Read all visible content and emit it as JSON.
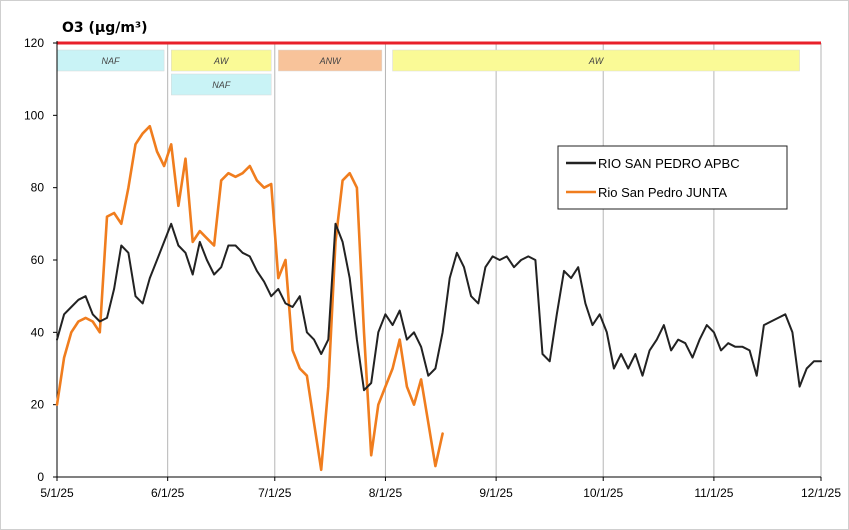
{
  "chart_data": {
    "type": "line",
    "title": "O3  (µg/m³)",
    "ylim": [
      0,
      120
    ],
    "y_ticks": [
      "0",
      "20",
      "40",
      "60",
      "80",
      "100",
      "120"
    ],
    "x_tick_labels": [
      "5/1/25",
      "6/1/25",
      "7/1/25",
      "8/1/25",
      "9/1/25",
      "10/1/25",
      "11/1/25",
      "12/1/25"
    ],
    "x_range": [
      "2025-05-01",
      "2025-12-01"
    ],
    "grid": "vertical",
    "legend_position": "right",
    "limit_line": {
      "value": 120,
      "color": "#e8202a"
    },
    "event_bands": [
      {
        "label": "NAF",
        "start": "2025-05-01",
        "end": "2025-05-31",
        "row": 0,
        "color": "#c9f3f6"
      },
      {
        "label": "AW",
        "start": "2025-06-02",
        "end": "2025-06-30",
        "row": 0,
        "color": "#fafa96"
      },
      {
        "label": "NAF",
        "start": "2025-06-02",
        "end": "2025-06-30",
        "row": 1,
        "color": "#c9f3f6"
      },
      {
        "label": "ANW",
        "start": "2025-07-02",
        "end": "2025-07-31",
        "row": 0,
        "color": "#f8c39a"
      },
      {
        "label": "AW",
        "start": "2025-08-03",
        "end": "2025-11-25",
        "row": 0,
        "color": "#fafa96"
      }
    ],
    "series": [
      {
        "name": "RIO SAN PEDRO APBC",
        "color": "#222222",
        "x": [
          "2025-05-01",
          "2025-05-03",
          "2025-05-05",
          "2025-05-07",
          "2025-05-09",
          "2025-05-11",
          "2025-05-13",
          "2025-05-15",
          "2025-05-17",
          "2025-05-19",
          "2025-05-21",
          "2025-05-23",
          "2025-05-25",
          "2025-05-27",
          "2025-05-29",
          "2025-05-31",
          "2025-06-02",
          "2025-06-04",
          "2025-06-06",
          "2025-06-08",
          "2025-06-10",
          "2025-06-12",
          "2025-06-14",
          "2025-06-16",
          "2025-06-18",
          "2025-06-20",
          "2025-06-22",
          "2025-06-24",
          "2025-06-26",
          "2025-06-28",
          "2025-06-30",
          "2025-07-02",
          "2025-07-04",
          "2025-07-06",
          "2025-07-08",
          "2025-07-10",
          "2025-07-12",
          "2025-07-14",
          "2025-07-16",
          "2025-07-18",
          "2025-07-20",
          "2025-07-22",
          "2025-07-24",
          "2025-07-26",
          "2025-07-28",
          "2025-07-30",
          "2025-08-01",
          "2025-08-03",
          "2025-08-05",
          "2025-08-07",
          "2025-08-09",
          "2025-08-11",
          "2025-08-13",
          "2025-08-15",
          "2025-08-17",
          "2025-08-19",
          "2025-08-21",
          "2025-08-23",
          "2025-08-25",
          "2025-08-27",
          "2025-08-29",
          "2025-08-31",
          "2025-09-02",
          "2025-09-04",
          "2025-09-06",
          "2025-09-08",
          "2025-09-10",
          "2025-09-12",
          "2025-09-14",
          "2025-09-16",
          "2025-09-18",
          "2025-09-20",
          "2025-09-22",
          "2025-09-24",
          "2025-09-26",
          "2025-09-28",
          "2025-09-30",
          "2025-10-02",
          "2025-10-04",
          "2025-10-06",
          "2025-10-08",
          "2025-10-10",
          "2025-10-12",
          "2025-10-14",
          "2025-10-16",
          "2025-10-18",
          "2025-10-20",
          "2025-10-22",
          "2025-10-24",
          "2025-10-26",
          "2025-10-28",
          "2025-10-30",
          "2025-11-01",
          "2025-11-03",
          "2025-11-05",
          "2025-11-07",
          "2025-11-09",
          "2025-11-11",
          "2025-11-13",
          "2025-11-15",
          "2025-11-17",
          "2025-11-19",
          "2025-11-21",
          "2025-11-23",
          "2025-11-25",
          "2025-11-27",
          "2025-11-29",
          "2025-12-01"
        ],
        "y": [
          38,
          45,
          47,
          49,
          50,
          45,
          43,
          44,
          52,
          64,
          62,
          50,
          48,
          55,
          60,
          65,
          70,
          64,
          62,
          56,
          65,
          60,
          56,
          58,
          64,
          64,
          62,
          61,
          57,
          54,
          50,
          52,
          48,
          47,
          50,
          40,
          38,
          34,
          38,
          70,
          65,
          55,
          38,
          24,
          26,
          40,
          45,
          42,
          46,
          38,
          40,
          36,
          28,
          30,
          40,
          55,
          62,
          58,
          50,
          48,
          58,
          61,
          60,
          61,
          58,
          60,
          61,
          60,
          34,
          32,
          45,
          57,
          55,
          58,
          48,
          42,
          45,
          40,
          30,
          34,
          30,
          34,
          28,
          35,
          38,
          42,
          35,
          38,
          37,
          33,
          38,
          42,
          40,
          35,
          37,
          36,
          36,
          35,
          28,
          42,
          43,
          44,
          45,
          40,
          25,
          30,
          32,
          32
        ]
      },
      {
        "name": "Rio San Pedro JUNTA",
        "color": "#f07d1e",
        "x": [
          "2025-05-01",
          "2025-05-03",
          "2025-05-05",
          "2025-05-07",
          "2025-05-09",
          "2025-05-11",
          "2025-05-13",
          "2025-05-15",
          "2025-05-17",
          "2025-05-19",
          "2025-05-21",
          "2025-05-23",
          "2025-05-25",
          "2025-05-27",
          "2025-05-29",
          "2025-05-31",
          "2025-06-02",
          "2025-06-04",
          "2025-06-06",
          "2025-06-08",
          "2025-06-10",
          "2025-06-12",
          "2025-06-14",
          "2025-06-16",
          "2025-06-18",
          "2025-06-20",
          "2025-06-22",
          "2025-06-24",
          "2025-06-26",
          "2025-06-28",
          "2025-06-30",
          "2025-07-02",
          "2025-07-04",
          "2025-07-06",
          "2025-07-08",
          "2025-07-10",
          "2025-07-12",
          "2025-07-14",
          "2025-07-16",
          "2025-07-18",
          "2025-07-20",
          "2025-07-22",
          "2025-07-24",
          "2025-07-26",
          "2025-07-28",
          "2025-07-30",
          "2025-08-01",
          "2025-08-03",
          "2025-08-05",
          "2025-08-07",
          "2025-08-09",
          "2025-08-11",
          "2025-08-13",
          "2025-08-15",
          "2025-08-17"
        ],
        "y": [
          20,
          33,
          40,
          43,
          44,
          43,
          40,
          72,
          73,
          70,
          80,
          92,
          95,
          97,
          90,
          86,
          92,
          75,
          88,
          65,
          68,
          66,
          64,
          82,
          84,
          83,
          84,
          86,
          82,
          80,
          81,
          55,
          60,
          35,
          30,
          28,
          15,
          2,
          25,
          65,
          82,
          84,
          80,
          40,
          6,
          20,
          25,
          30,
          38,
          25,
          20,
          27,
          15,
          3,
          12
        ]
      }
    ]
  }
}
